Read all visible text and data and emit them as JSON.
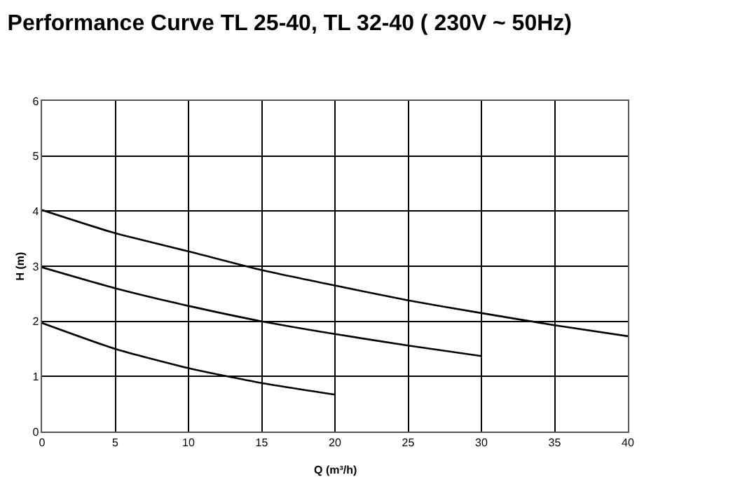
{
  "chart_data": {
    "type": "line",
    "title": "Performance Curve TL 25-40, TL 32-40 ( 230V ~ 50Hz)",
    "xlabel": "Q (m³/h)",
    "ylabel": "H (m)",
    "xlim": [
      0,
      40
    ],
    "xticks": [
      0,
      5,
      10,
      15,
      20,
      25,
      30,
      35,
      40
    ],
    "ylim": [
      0,
      6
    ],
    "yticks": [
      0,
      1,
      2,
      3,
      4,
      5,
      6
    ],
    "grid": true,
    "marker": "none",
    "line_style": "solid",
    "series": [
      {
        "color": "#000000",
        "x": [
          0,
          5,
          10,
          15,
          20,
          25,
          30,
          35,
          40
        ],
        "values": [
          4.02,
          3.6,
          3.27,
          2.93,
          2.65,
          2.38,
          2.15,
          1.93,
          1.73
        ]
      },
      {
        "color": "#000000",
        "x": [
          0,
          5,
          10,
          15,
          20,
          25,
          30
        ],
        "values": [
          2.98,
          2.6,
          2.28,
          2.0,
          1.77,
          1.56,
          1.37
        ]
      },
      {
        "color": "#000000",
        "x": [
          0,
          5,
          10,
          15,
          20
        ],
        "values": [
          1.97,
          1.5,
          1.15,
          0.88,
          0.67
        ]
      }
    ]
  }
}
